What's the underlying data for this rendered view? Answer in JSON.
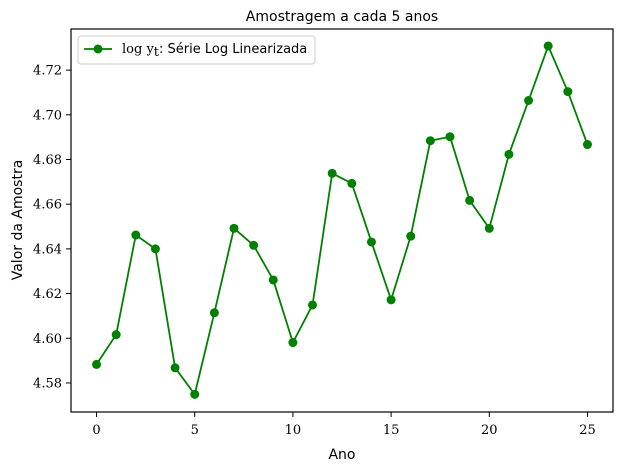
{
  "chart_data": {
    "type": "line",
    "title": "Amostragem a cada 5 anos",
    "xlabel": "Ano",
    "ylabel": "Valor da Amostra",
    "xlim": [
      -1.3,
      26.3
    ],
    "ylim": [
      4.567,
      4.7384
    ],
    "x_ticks": [
      0,
      5,
      10,
      15,
      20,
      25
    ],
    "y_ticks": [
      4.58,
      4.6,
      4.62,
      4.64,
      4.66,
      4.68,
      4.7,
      4.72
    ],
    "y_tick_labels": [
      "4.58",
      "4.60",
      "4.62",
      "4.64",
      "4.66",
      "4.68",
      "4.70",
      "4.72"
    ],
    "grid": false,
    "legend_position": "top-left",
    "series": [
      {
        "name": "log y_t: Série Log Linearizada",
        "legend_math": "log y",
        "legend_math_sub": "t",
        "legend_text": ": Série Log Linearizada",
        "color": "#008000",
        "marker": "circle",
        "x": [
          0,
          1,
          2,
          3,
          4,
          5,
          6,
          7,
          8,
          9,
          10,
          11,
          12,
          13,
          14,
          15,
          16,
          17,
          18,
          19,
          20,
          21,
          22,
          23,
          24,
          25
        ],
        "values": [
          4.5883,
          4.6016,
          4.6462,
          4.64,
          4.5868,
          4.5749,
          4.6114,
          4.6492,
          4.6416,
          4.6261,
          4.5981,
          4.6149,
          4.6738,
          4.6693,
          4.6431,
          4.6172,
          4.6457,
          4.6884,
          4.6902,
          4.6617,
          4.6492,
          4.6823,
          4.7064,
          4.7308,
          4.7104,
          4.6867
        ]
      }
    ]
  }
}
